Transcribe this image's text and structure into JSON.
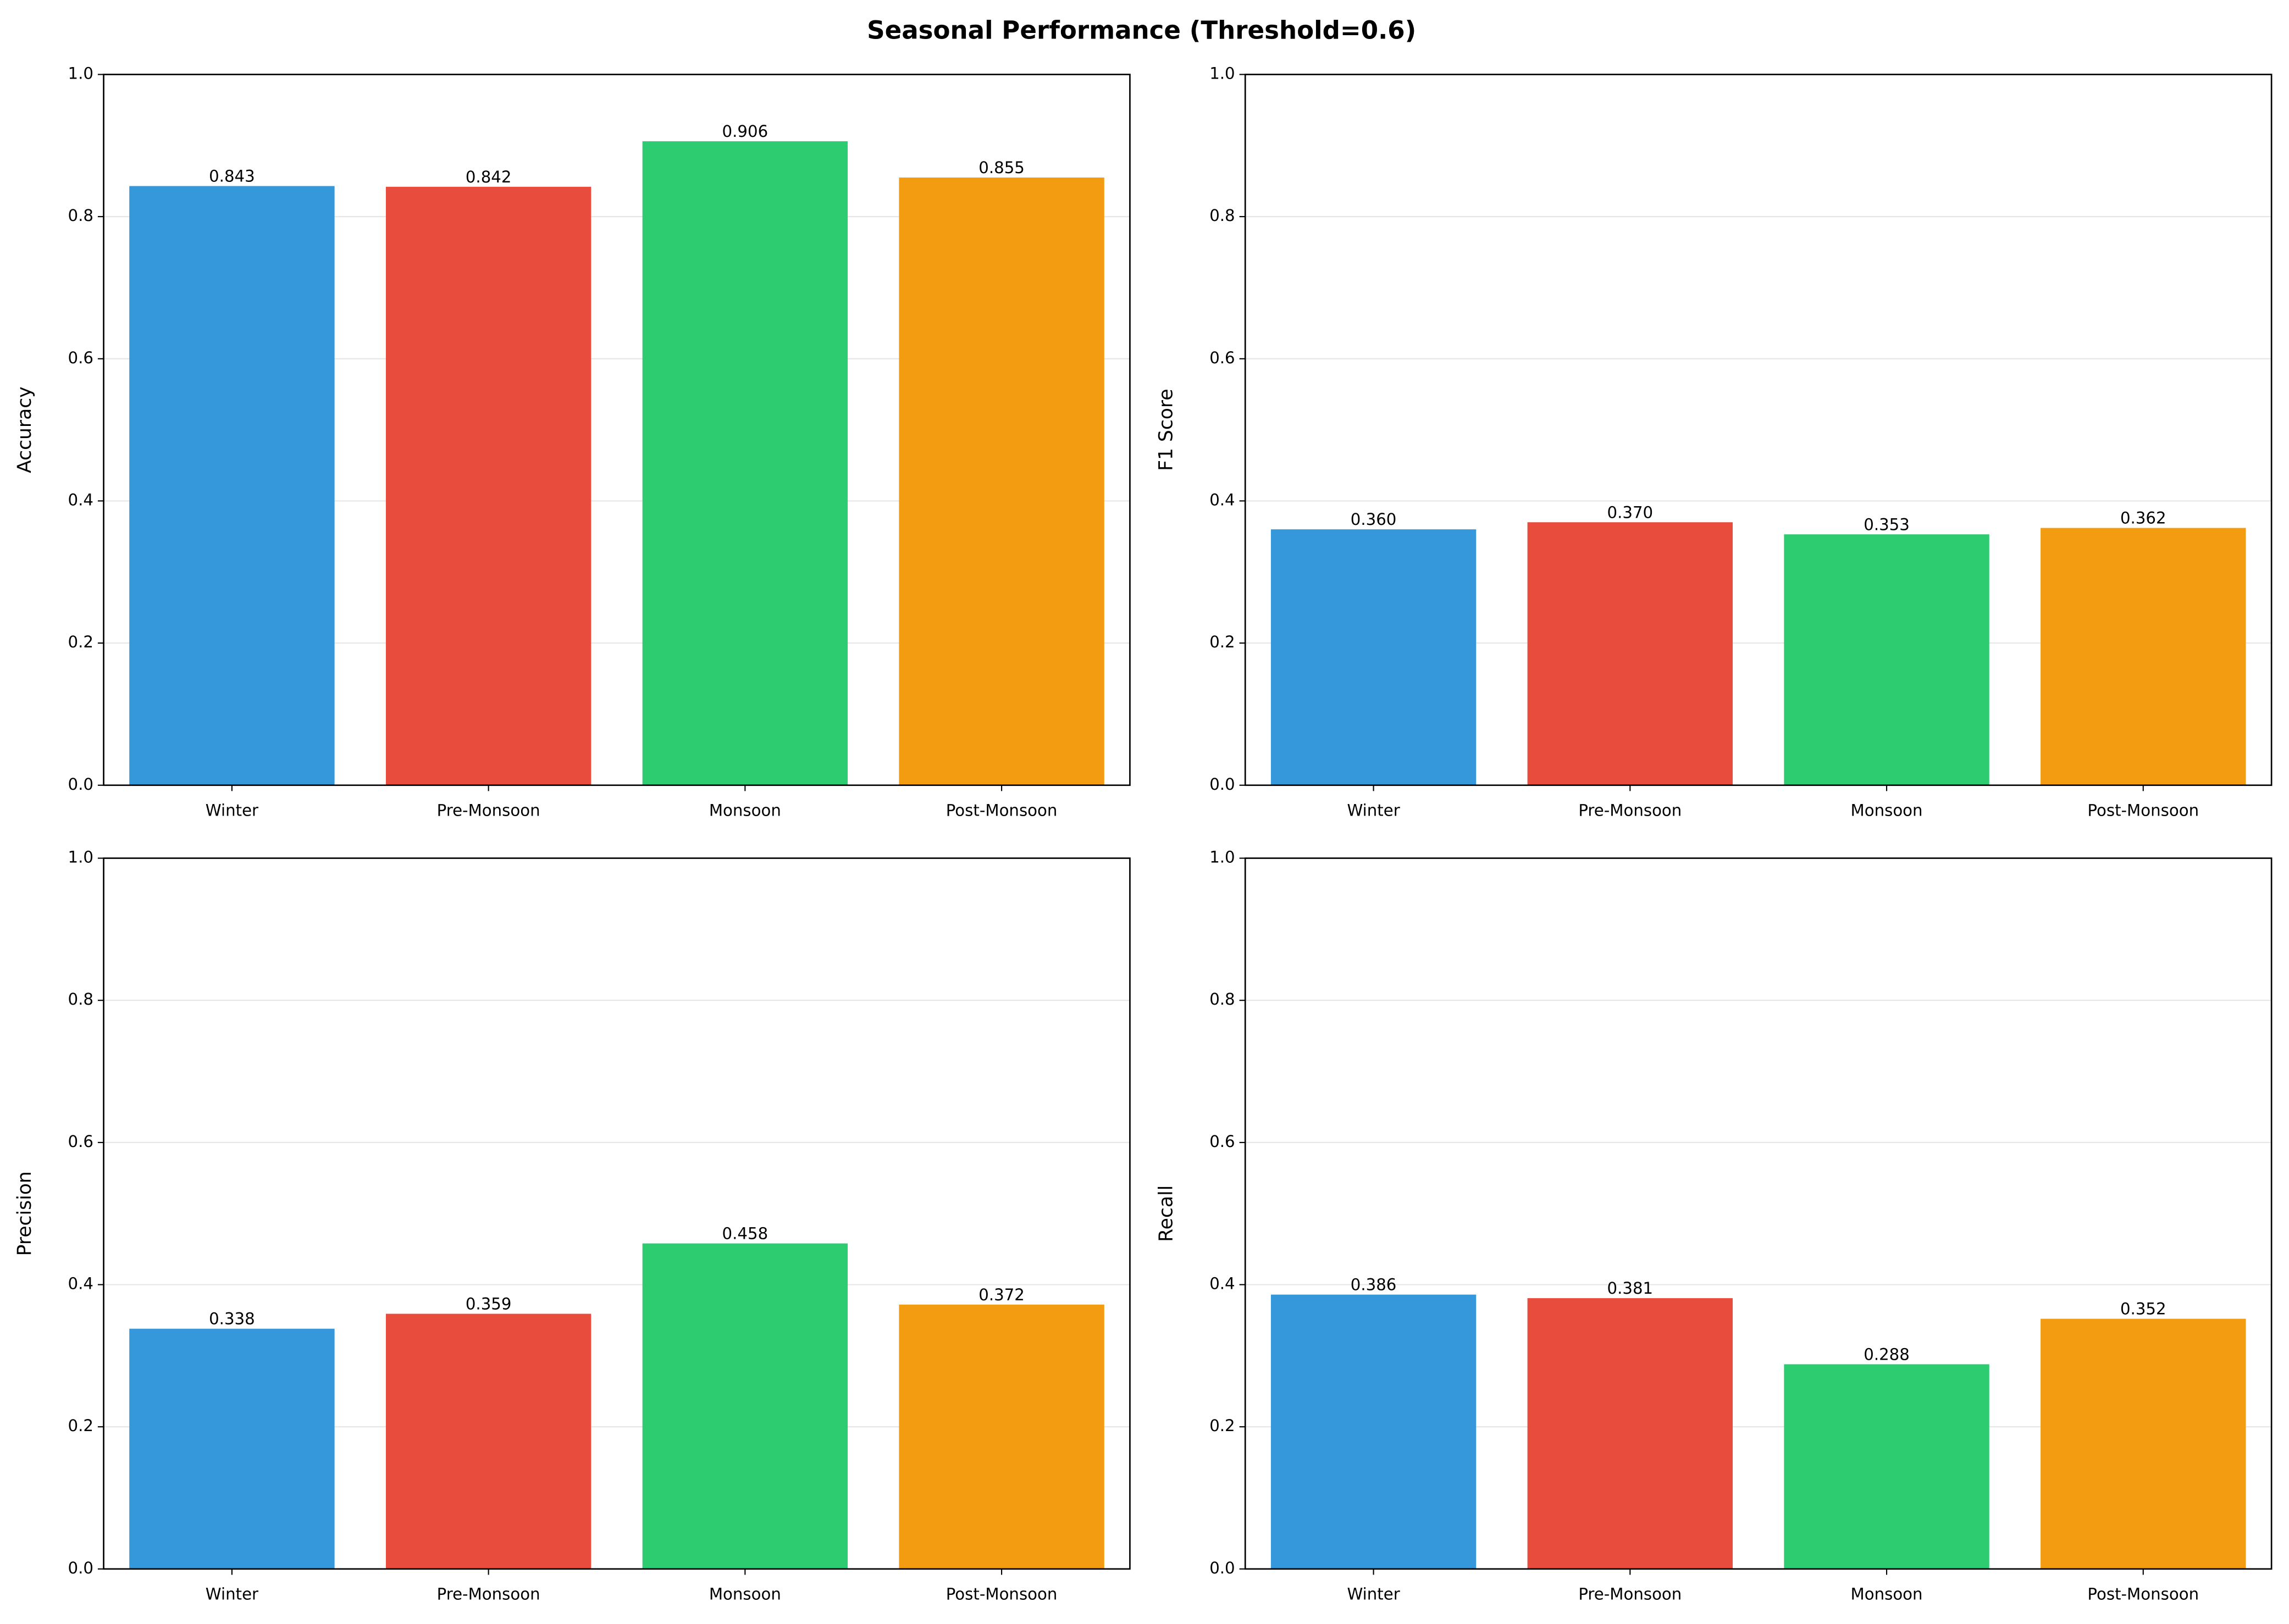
{
  "title": "Seasonal Performance (Threshold=0.6)",
  "chart_data": [
    {
      "type": "bar",
      "ylabel": "Accuracy",
      "categories": [
        "Winter",
        "Pre-Monsoon",
        "Monsoon",
        "Post-Monsoon"
      ],
      "values": [
        0.843,
        0.842,
        0.906,
        0.855
      ],
      "value_labels": [
        "0.843",
        "0.842",
        "0.906",
        "0.855"
      ],
      "colors": [
        "#3498db",
        "#e74c3c",
        "#2ecc71",
        "#f39c12"
      ],
      "ylim": [
        0,
        1
      ],
      "yticks": [
        {
          "value": 0,
          "label": "0.0"
        },
        0.2,
        0.4,
        0.6,
        0.8,
        {
          "value": 1,
          "label": "1.0"
        }
      ],
      "grid": true
    },
    {
      "type": "bar",
      "ylabel": "F1 Score",
      "categories": [
        "Winter",
        "Pre-Monsoon",
        "Monsoon",
        "Post-Monsoon"
      ],
      "values": [
        0.36,
        0.37,
        0.353,
        0.362
      ],
      "value_labels": [
        "0.360",
        "0.370",
        "0.353",
        "0.362"
      ],
      "colors": [
        "#3498db",
        "#e74c3c",
        "#2ecc71",
        "#f39c12"
      ],
      "ylim": [
        0,
        1
      ],
      "yticks": [
        {
          "value": 0,
          "label": "0.0"
        },
        0.2,
        0.4,
        0.6,
        0.8,
        {
          "value": 1,
          "label": "1.0"
        }
      ],
      "grid": true
    },
    {
      "type": "bar",
      "ylabel": "Precision",
      "categories": [
        "Winter",
        "Pre-Monsoon",
        "Monsoon",
        "Post-Monsoon"
      ],
      "values": [
        0.338,
        0.359,
        0.458,
        0.372
      ],
      "value_labels": [
        "0.338",
        "0.359",
        "0.458",
        "0.372"
      ],
      "colors": [
        "#3498db",
        "#e74c3c",
        "#2ecc71",
        "#f39c12"
      ],
      "ylim": [
        0,
        1
      ],
      "yticks": [
        {
          "value": 0,
          "label": "0.0"
        },
        0.2,
        0.4,
        0.6,
        0.8,
        {
          "value": 1,
          "label": "1.0"
        }
      ],
      "grid": true
    },
    {
      "type": "bar",
      "ylabel": "Recall",
      "categories": [
        "Winter",
        "Pre-Monsoon",
        "Monsoon",
        "Post-Monsoon"
      ],
      "values": [
        0.386,
        0.381,
        0.288,
        0.352
      ],
      "value_labels": [
        "0.386",
        "0.381",
        "0.288",
        "0.352"
      ],
      "colors": [
        "#3498db",
        "#e74c3c",
        "#2ecc71",
        "#f39c12"
      ],
      "ylim": [
        0,
        1
      ],
      "yticks": [
        {
          "value": 0,
          "label": "0.0"
        },
        0.2,
        0.4,
        0.6,
        0.8,
        {
          "value": 1,
          "label": "1.0"
        }
      ],
      "grid": true
    }
  ]
}
